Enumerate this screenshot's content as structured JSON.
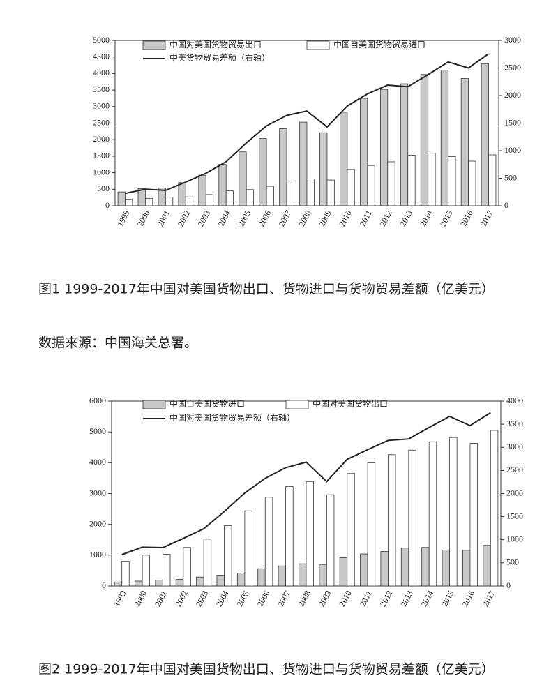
{
  "chart_data": [
    {
      "type": "bar",
      "title": "图1 1999-2017年中国对美国货物出口、货物进口与货物贸易差额（亿美元）",
      "source": "数据来源：中国海关总署。",
      "categories": [
        "1999",
        "2000",
        "2001",
        "2002",
        "2003",
        "2004",
        "2005",
        "2006",
        "2007",
        "2008",
        "2009",
        "2010",
        "2011",
        "2012",
        "2013",
        "2014",
        "2015",
        "2016",
        "2017"
      ],
      "series": [
        {
          "name": "中国对美国货物贸易出口",
          "color": "#c8c8c8",
          "values": [
            420,
            520,
            540,
            700,
            925,
            1250,
            1630,
            2035,
            2330,
            2530,
            2210,
            2830,
            3250,
            3520,
            3690,
            3970,
            4100,
            3850,
            4300
          ]
        },
        {
          "name": "中国自美国货物贸易进口",
          "color": "#ffffff",
          "values": [
            195,
            225,
            260,
            270,
            340,
            450,
            490,
            590,
            690,
            810,
            780,
            1100,
            1220,
            1330,
            1530,
            1590,
            1490,
            1350,
            1540
          ]
        },
        {
          "name": "中美货物贸易差额（右轴）",
          "type": "line",
          "axis": "y2",
          "color": "#222222",
          "values": [
            225,
            300,
            280,
            430,
            590,
            800,
            1140,
            1450,
            1640,
            1720,
            1430,
            1810,
            2030,
            2190,
            2160,
            2380,
            2610,
            2500,
            2760
          ]
        }
      ],
      "ylim": [
        0,
        5000
      ],
      "yticks": [
        0,
        500,
        1000,
        1500,
        2000,
        2500,
        3000,
        3500,
        4000,
        4500,
        5000
      ],
      "y2lim": [
        0,
        3000
      ],
      "y2ticks": [
        0,
        500,
        1000,
        1500,
        2000,
        2500,
        3000
      ]
    },
    {
      "type": "bar",
      "title": "图2 1999-2017年中国对美国货物出口、货物进口与货物贸易差额（亿美元）",
      "categories": [
        "1999",
        "2000",
        "2001",
        "2002",
        "2003",
        "2004",
        "2005",
        "2006",
        "2007",
        "2008",
        "2009",
        "2010",
        "2011",
        "2012",
        "2013",
        "2014",
        "2015",
        "2016",
        "2017"
      ],
      "series": [
        {
          "name": "中国自美国货物进口",
          "color": "#c8c8c8",
          "values": [
            130,
            160,
            190,
            220,
            290,
            350,
            420,
            560,
            650,
            720,
            700,
            920,
            1040,
            1120,
            1230,
            1250,
            1170,
            1160,
            1320
          ]
        },
        {
          "name": "中国对美国货物出口",
          "color": "#ffffff",
          "values": [
            800,
            1000,
            1030,
            1250,
            1520,
            1960,
            2440,
            2880,
            3230,
            3390,
            2960,
            3650,
            4000,
            4260,
            4410,
            4680,
            4820,
            4630,
            5050
          ]
        },
        {
          "name": "中国对美国货物贸易差额（右轴）",
          "type": "line",
          "axis": "y2",
          "color": "#222222",
          "values": [
            680,
            840,
            830,
            1030,
            1240,
            1610,
            2010,
            2330,
            2560,
            2680,
            2260,
            2740,
            2950,
            3150,
            3180,
            3430,
            3670,
            3470,
            3750
          ]
        }
      ],
      "ylim": [
        0,
        6000
      ],
      "yticks": [
        0,
        1000,
        2000,
        3000,
        4000,
        5000,
        6000
      ],
      "y2lim": [
        0,
        4000
      ],
      "y2ticks": [
        0,
        500,
        1000,
        1500,
        2000,
        2500,
        3000,
        3500,
        4000
      ]
    }
  ]
}
